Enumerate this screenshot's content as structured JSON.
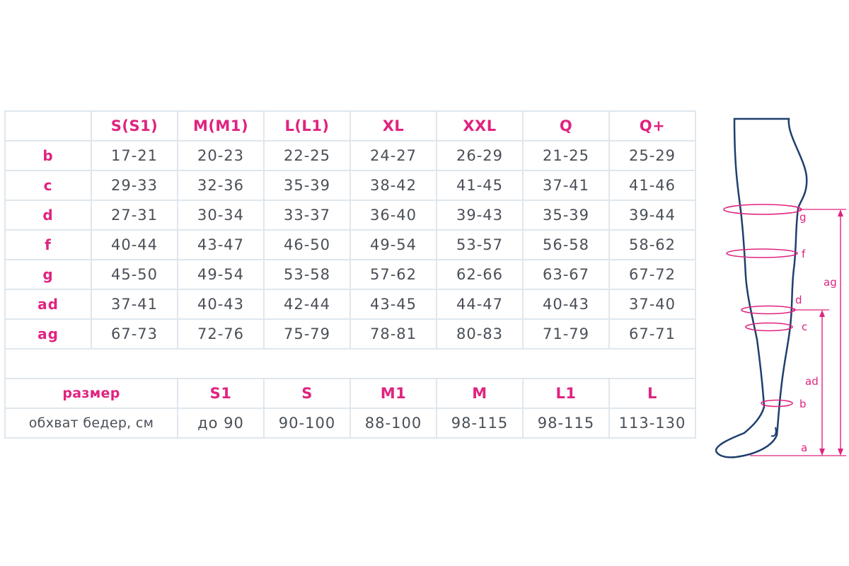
{
  "table": {
    "columns": [
      "S(S1)",
      "M(M1)",
      "L(L1)",
      "XL",
      "XXL",
      "Q",
      "Q+"
    ],
    "rows": [
      {
        "key": "b",
        "values": [
          "17-21",
          "20-23",
          "22-25",
          "24-27",
          "26-29",
          "21-25",
          "25-29"
        ]
      },
      {
        "key": "c",
        "values": [
          "29-33",
          "32-36",
          "35-39",
          "38-42",
          "41-45",
          "37-41",
          "41-46"
        ]
      },
      {
        "key": "d",
        "values": [
          "27-31",
          "30-34",
          "33-37",
          "36-40",
          "39-43",
          "35-39",
          "39-44"
        ]
      },
      {
        "key": "f",
        "values": [
          "40-44",
          "43-47",
          "46-50",
          "49-54",
          "53-57",
          "56-58",
          "58-62"
        ]
      },
      {
        "key": "g",
        "values": [
          "45-50",
          "49-54",
          "53-58",
          "57-62",
          "62-66",
          "63-67",
          "67-72"
        ]
      },
      {
        "key": "ad",
        "values": [
          "37-41",
          "40-43",
          "42-44",
          "43-45",
          "44-47",
          "40-43",
          "37-40"
        ]
      },
      {
        "key": "ag",
        "values": [
          "67-73",
          "72-76",
          "75-79",
          "78-81",
          "80-83",
          "71-79",
          "67-71"
        ]
      }
    ]
  },
  "hip_table": {
    "size_label": "размер",
    "sizes": [
      "S1",
      "S",
      "M1",
      "M",
      "L1",
      "L"
    ],
    "hip_label": "обхват бедер, см",
    "hips": [
      "до 90",
      "90-100",
      "88-100",
      "98-115",
      "98-115",
      "113-130"
    ]
  },
  "diagram": {
    "labels": {
      "g": "g",
      "f": "f",
      "d": "d",
      "c": "c",
      "b": "b",
      "a": "a",
      "ag": "ag",
      "ad": "ad"
    },
    "colors": {
      "outline": "#1f3f6e",
      "accent": "#e0237f"
    }
  }
}
